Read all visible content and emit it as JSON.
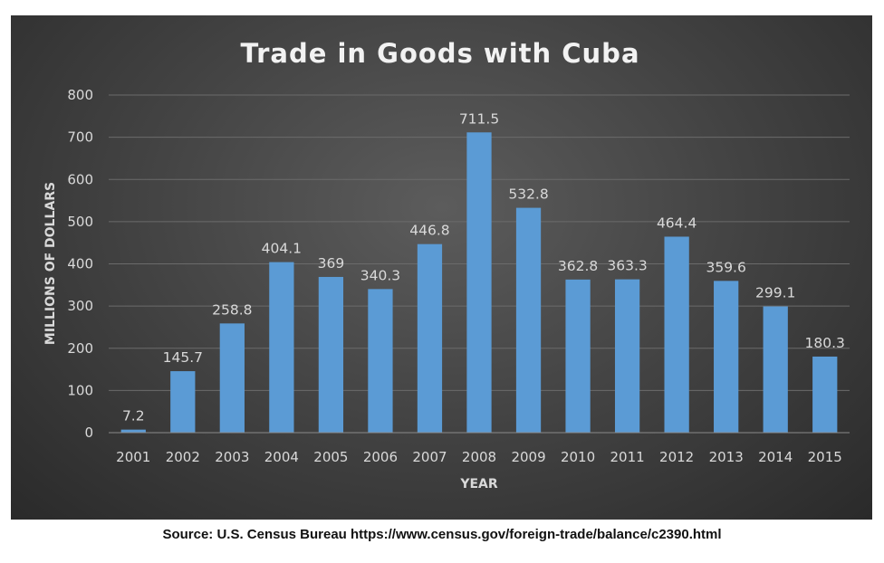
{
  "chart_data": {
    "type": "bar",
    "title": "Trade in Goods with Cuba",
    "xlabel": "YEAR",
    "ylabel": "MILLIONS OF DOLLARS",
    "ylim": [
      0,
      800
    ],
    "yticks": [
      0,
      100,
      200,
      300,
      400,
      500,
      600,
      700,
      800
    ],
    "categories": [
      "2001",
      "2002",
      "2003",
      "2004",
      "2005",
      "2006",
      "2007",
      "2008",
      "2009",
      "2010",
      "2011",
      "2012",
      "2013",
      "2014",
      "2015"
    ],
    "values": [
      7.2,
      145.7,
      258.8,
      404.1,
      369,
      340.3,
      446.8,
      711.5,
      532.8,
      362.8,
      363.3,
      464.4,
      359.6,
      299.1,
      180.3
    ],
    "data_labels": [
      "7.2",
      "145.7",
      "258.8",
      "404.1",
      "369",
      "340.3",
      "446.8",
      "711.5",
      "532.8",
      "362.8",
      "363.3",
      "464.4",
      "359.6",
      "299.1",
      "180.3"
    ],
    "grid": true,
    "legend": "none",
    "bar_color": "#5b9bd5"
  },
  "source": "Source: U.S. Census Bureau https://www.census.gov/foreign-trade/balance/c2390.html"
}
